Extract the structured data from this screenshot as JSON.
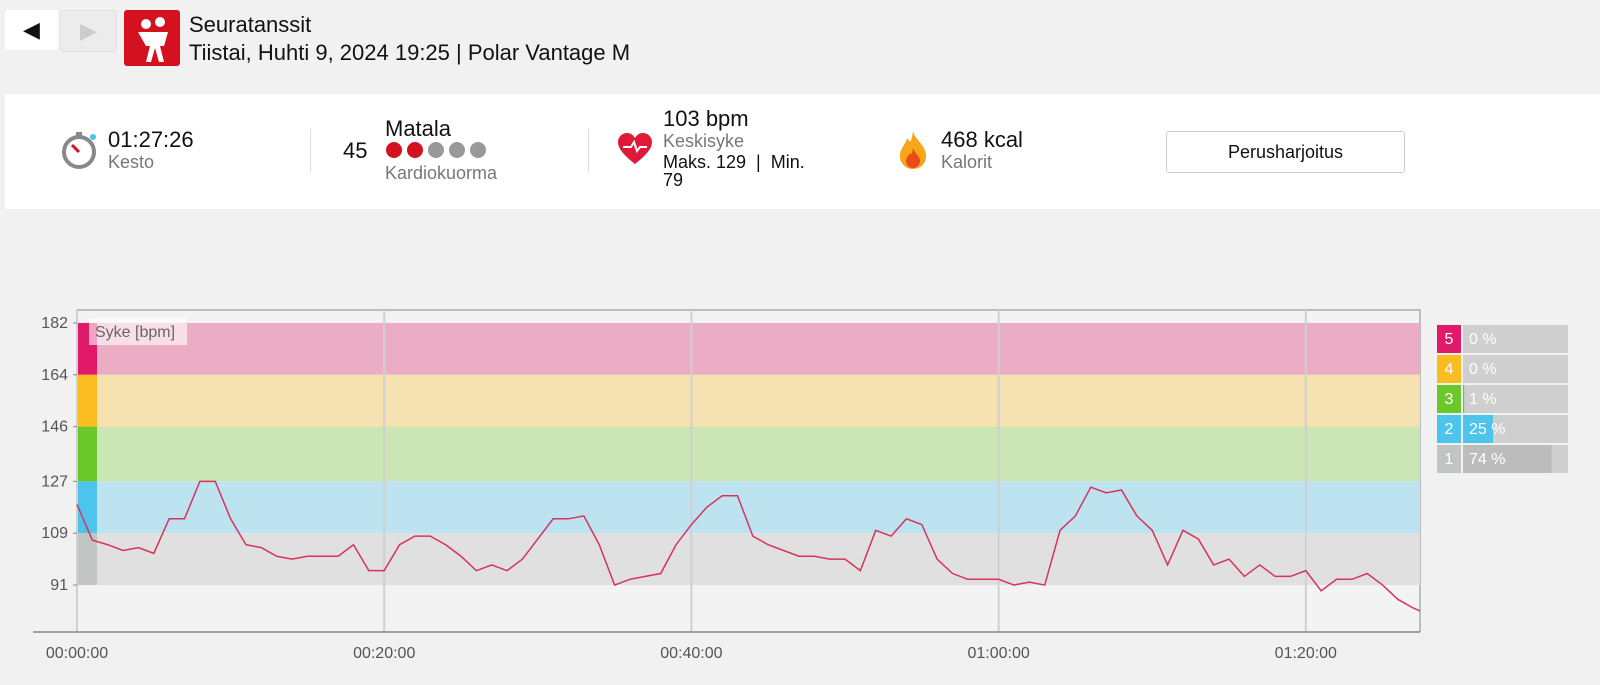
{
  "header": {
    "title": "Seuratanssit",
    "subtitle": "Tiistai, Huhti 9, 2024 19:25 | Polar Vantage M"
  },
  "summary": {
    "duration": "01:27:26",
    "duration_label": "Kesto",
    "load_value": "45",
    "load_level": "Matala",
    "load_label": "Kardiokuorma",
    "hr_avg": "103 bpm",
    "hr_avg_label": "Keskisyke",
    "hr_maxmin": "Maks. 129  |  Min. 79",
    "calories": "468 kcal",
    "calories_label": "Kalorit",
    "button": "Perusharjoitus"
  },
  "chart_data": {
    "type": "line",
    "x": [
      0,
      60,
      120,
      180,
      240,
      300,
      360,
      420,
      480,
      540,
      600,
      660,
      720,
      780,
      840,
      900,
      960,
      1020,
      1080,
      1140,
      1200,
      1260,
      1320,
      1380,
      1440,
      1500,
      1560,
      1620,
      1680,
      1740,
      1800,
      1860,
      1920,
      1980,
      2040,
      2100,
      2160,
      2220,
      2280,
      2340,
      2400,
      2460,
      2520,
      2580,
      2640,
      2700,
      2760,
      2820,
      2880,
      2940,
      3000,
      3060,
      3120,
      3180,
      3240,
      3300,
      3360,
      3420,
      3480,
      3540,
      3600,
      3660,
      3720,
      3780,
      3840,
      3900,
      3960,
      4020,
      4080,
      4140,
      4200,
      4260,
      4320,
      4380,
      4440,
      4500,
      4560,
      4620,
      4680,
      4740,
      4800,
      4860,
      4920,
      4980,
      5040,
      5100,
      5160,
      5220,
      5246
    ],
    "series": [
      {
        "name": "Syke [bpm]",
        "color": "#d6345a",
        "values": [
          119,
          106.6,
          105,
          103,
          104,
          102,
          114,
          114,
          127,
          127,
          114,
          105,
          104,
          101,
          100,
          101,
          101,
          101,
          105,
          96,
          96,
          105,
          108,
          108,
          105,
          101,
          96,
          98,
          96,
          100,
          107,
          114,
          114,
          115,
          105,
          91,
          93,
          94,
          95,
          105,
          112,
          118,
          122,
          122,
          108,
          105,
          103,
          101,
          101,
          100,
          100,
          96,
          110,
          108,
          114,
          112,
          100,
          95,
          93,
          93,
          93,
          91,
          92,
          91,
          110,
          115,
          125,
          123,
          124,
          115,
          110,
          98,
          110,
          107,
          98,
          100,
          94,
          98,
          94,
          94,
          96,
          89,
          93,
          93,
          95,
          91,
          86,
          83,
          82
        ]
      }
    ],
    "xlim": [
      0,
      5246
    ],
    "ylim": [
      74.7,
      186.5
    ],
    "xticks": [
      {
        "value": 0,
        "label": "00:00:00"
      },
      {
        "value": 1200,
        "label": "00:20:00"
      },
      {
        "value": 2400,
        "label": "00:40:00"
      },
      {
        "value": 3600,
        "label": "01:00:00"
      },
      {
        "value": 4800,
        "label": "01:20:00"
      }
    ],
    "yticks": [
      91,
      109,
      127,
      146,
      164,
      182
    ],
    "zones": {
      "names": [
        "5",
        "4",
        "3",
        "2",
        "1"
      ],
      "lower": [
        164,
        146,
        127,
        109,
        91
      ],
      "upper": [
        182,
        164,
        146,
        127,
        109
      ],
      "colors": [
        "#e0196b",
        "#f9bd22",
        "#6cc72b",
        "#4dc4ec",
        "#c0c4c3"
      ],
      "band_colors": [
        "#eaadc4",
        "#f5e2b0",
        "#cbe6b5",
        "#bde3f1",
        "#dfe0df"
      ],
      "values": [
        0,
        0,
        1,
        25,
        74
      ],
      "value_labels": [
        "0 %",
        "0 %",
        "1 %",
        "25 %",
        "74 %"
      ]
    }
  }
}
